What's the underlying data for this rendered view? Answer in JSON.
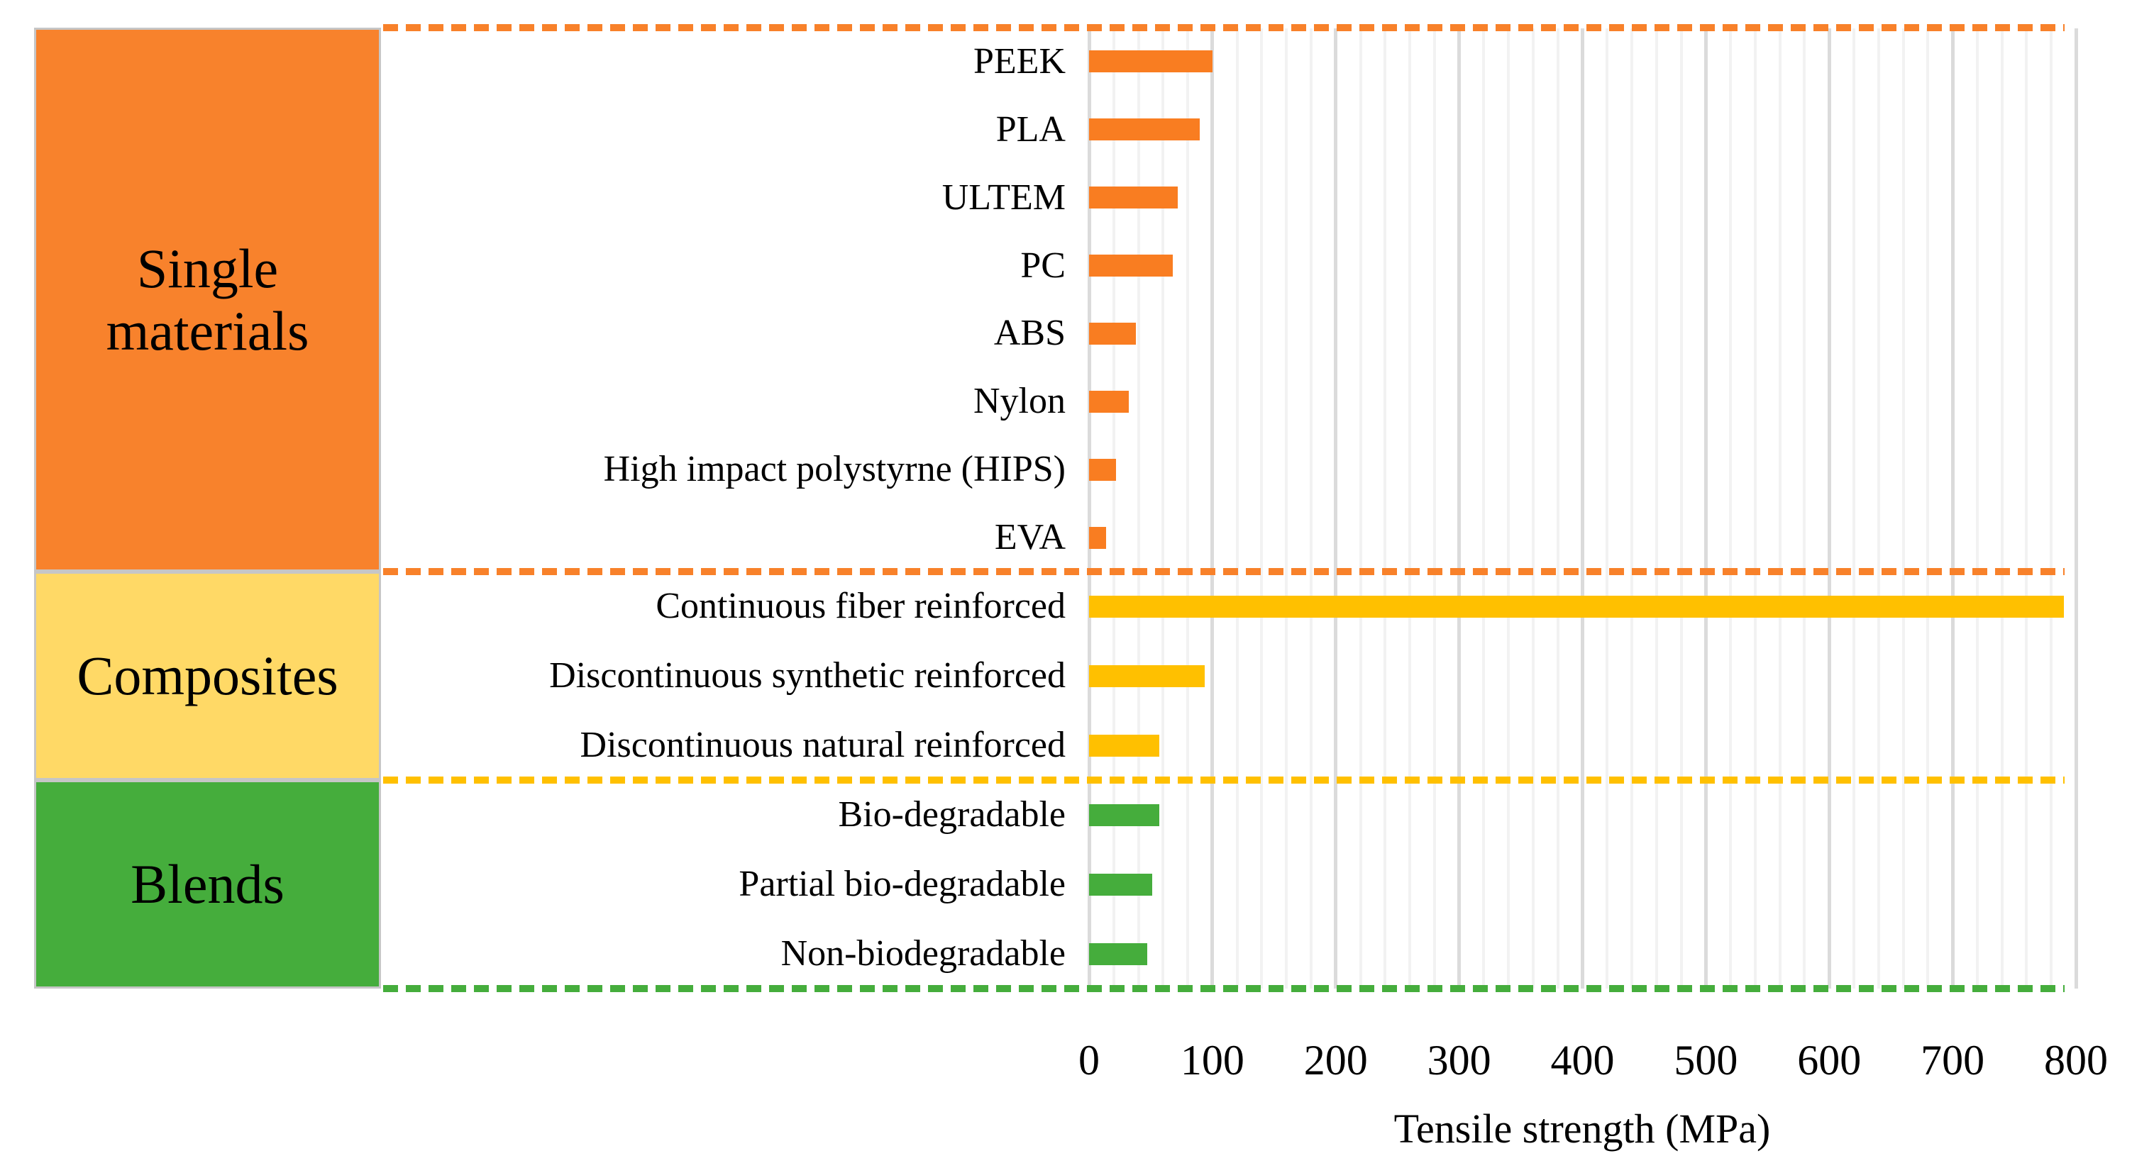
{
  "figure": {
    "background": "#ffffff",
    "text_color": "#000000"
  },
  "chart_data": {
    "type": "bar",
    "orientation": "horizontal",
    "xlabel": "Tensile strength (MPa)",
    "xlim": [
      0,
      800
    ],
    "x_ticks": [
      0,
      100,
      200,
      300,
      400,
      500,
      600,
      700,
      800
    ],
    "minor_grid_step": 20,
    "grid": "on",
    "legend": "none",
    "groups": [
      {
        "name": "Single materials",
        "block_color": "#f8822c",
        "bar_color": "#f97d21",
        "dash_color": "#f8812a",
        "items": [
          {
            "label": "PEEK",
            "value": 100
          },
          {
            "label": "PLA",
            "value": 90
          },
          {
            "label": "ULTEM",
            "value": 72
          },
          {
            "label": "PC",
            "value": 68
          },
          {
            "label": "ABS",
            "value": 38
          },
          {
            "label": "Nylon",
            "value": 32
          },
          {
            "label": "High impact polystyrne (HIPS)",
            "value": 22
          },
          {
            "label": "EVA",
            "value": 14
          }
        ]
      },
      {
        "name": "Composites",
        "block_color": "#ffd966",
        "bar_color": "#ffc000",
        "dash_color": "#ffc000",
        "items": [
          {
            "label": "Continuous fiber reinforced",
            "value": 790
          },
          {
            "label": "Discontinuous synthetic reinforced",
            "value": 94
          },
          {
            "label": "Discontinuous natural reinforced",
            "value": 57
          }
        ]
      },
      {
        "name": "Blends",
        "block_color": "#45ad3c",
        "bar_color": "#45ad3c",
        "dash_color": "#45ad3c",
        "items": [
          {
            "label": "Bio-degradable",
            "value": 57
          },
          {
            "label": "Partial bio-degradable",
            "value": 51
          },
          {
            "label": "Non-biodegradable",
            "value": 47
          }
        ]
      }
    ],
    "grid_colors": {
      "minor": "#f2f2f2",
      "major": "#dbdbdb"
    },
    "block_border_color": "#c6c6c6"
  }
}
